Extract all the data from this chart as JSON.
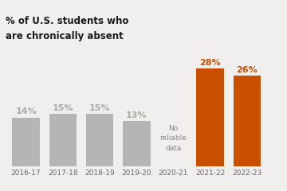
{
  "categories": [
    "2016-17",
    "2017-18",
    "2018-19",
    "2019-20",
    "2020-21",
    "2021-22",
    "2022-23"
  ],
  "values": [
    14,
    15,
    15,
    13,
    0,
    28,
    26
  ],
  "bar_colors": [
    "#b5b5b5",
    "#b5b5b5",
    "#b5b5b5",
    "#b5b5b5",
    null,
    "#c85000",
    "#c85000"
  ],
  "value_labels": [
    "14%",
    "15%",
    "15%",
    "13%",
    "",
    "28%",
    "26%"
  ],
  "value_label_colors": [
    "#aaaaaa",
    "#aaaaaa",
    "#aaaaaa",
    "#aaaaaa",
    "",
    "#c85000",
    "#c85000"
  ],
  "no_data_label": "No\nreliable\ndata",
  "no_data_index": 4,
  "title_line1": "% of U.S. students who",
  "title_line2": "are chronically absent",
  "background_color": "#f0efed",
  "ylim": [
    0,
    34
  ],
  "bar_width": 0.75,
  "xlim": [
    -0.55,
    6.85
  ]
}
